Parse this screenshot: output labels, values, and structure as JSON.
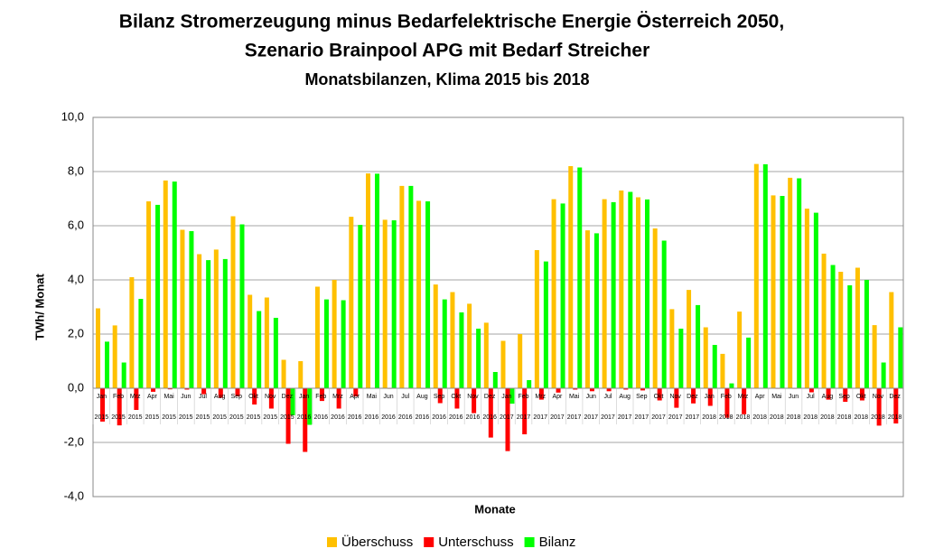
{
  "chart_data": {
    "type": "bar",
    "title": [
      "Bilanz Stromerzeugung minus Bedarfelektrische Energie Österreich 2050,",
      "Szenario Brainpool APG mit Bedarf Streicher"
    ],
    "subtitle": "Monatsbilanzen, Klima 2015 bis 2018",
    "y_label": "TWh/ Monat",
    "x_label": "Monate",
    "categories": [
      "Jan",
      "Feb",
      "Mrz",
      "Apr",
      "Mai",
      "Jun",
      "Jul",
      "Aug",
      "Sep",
      "Okt",
      "Nov",
      "Dez",
      "Jan",
      "Feb",
      "Mrz",
      "Apr",
      "Mai",
      "Jun",
      "Jul",
      "Aug",
      "Sep",
      "Okt",
      "Nov",
      "Dez",
      "Jan",
      "Feb",
      "Mrz",
      "Apr",
      "Mai",
      "Jun",
      "Jul",
      "Aug",
      "Sep",
      "Okt",
      "Nov",
      "Dez",
      "Jan",
      "Feb",
      "Mrz",
      "Apr",
      "Mai",
      "Jun",
      "Jul",
      "Aug",
      "Sep",
      "Okt",
      "Nov",
      "Dez"
    ],
    "years": [
      "2015",
      "2015",
      "2015",
      "2015",
      "2015",
      "2015",
      "2015",
      "2015",
      "2015",
      "2015",
      "2015",
      "2015",
      "2016",
      "2016",
      "2016",
      "2016",
      "2016",
      "2016",
      "2016",
      "2016",
      "2016",
      "2016",
      "2016",
      "2016",
      "2017",
      "2017",
      "2017",
      "2017",
      "2017",
      "2017",
      "2017",
      "2017",
      "2017",
      "2017",
      "2017",
      "2017",
      "2018",
      "2018",
      "2018",
      "2018",
      "2018",
      "2018",
      "2018",
      "2018",
      "2018",
      "2018",
      "2018",
      "2018"
    ],
    "series": [
      {
        "name": "Überschuss",
        "color": "#ffc000",
        "values": [
          2.95,
          2.32,
          4.1,
          6.9,
          7.67,
          5.85,
          4.95,
          5.12,
          6.35,
          3.45,
          3.35,
          1.05,
          1.0,
          3.75,
          4.0,
          6.33,
          7.93,
          6.22,
          7.47,
          6.92,
          3.83,
          3.55,
          3.12,
          2.42,
          1.75,
          2.0,
          5.1,
          6.98,
          8.2,
          5.83,
          6.98,
          7.3,
          7.05,
          5.9,
          2.92,
          3.63,
          2.25,
          1.27,
          2.83,
          8.28,
          7.12,
          7.77,
          6.63,
          4.97,
          4.3,
          4.45,
          2.33,
          3.55
        ]
      },
      {
        "name": "Unterschuss",
        "color": "#ff0000",
        "values": [
          -1.23,
          -1.37,
          -0.8,
          -0.13,
          -0.04,
          -0.05,
          -0.22,
          -0.35,
          -0.3,
          -0.6,
          -0.75,
          -2.05,
          -2.35,
          -0.47,
          -0.75,
          -0.3,
          -0.01,
          -0.02,
          0,
          -0.02,
          -0.55,
          -0.75,
          -0.92,
          -1.82,
          -2.32,
          -1.7,
          -0.42,
          -0.16,
          -0.05,
          -0.11,
          -0.11,
          -0.05,
          -0.08,
          -0.45,
          -0.72,
          -0.56,
          -0.65,
          -1.09,
          -0.96,
          -0.01,
          -0.02,
          -0.02,
          -0.15,
          -0.42,
          -0.5,
          -0.45,
          -1.38,
          -1.3
        ]
      },
      {
        "name": "Bilanz",
        "color": "#00ff00",
        "values": [
          1.72,
          0.95,
          3.3,
          6.77,
          7.63,
          5.8,
          4.73,
          4.77,
          6.05,
          2.85,
          2.6,
          -1.0,
          -1.35,
          3.28,
          3.25,
          6.03,
          7.92,
          6.2,
          7.47,
          6.9,
          3.28,
          2.8,
          2.2,
          0.6,
          -0.57,
          0.3,
          4.68,
          6.82,
          8.15,
          5.72,
          6.87,
          7.25,
          6.97,
          5.45,
          2.2,
          3.07,
          1.6,
          0.18,
          1.87,
          8.27,
          7.1,
          7.75,
          6.48,
          4.55,
          3.8,
          4.0,
          0.95,
          2.25
        ]
      }
    ],
    "ylim": [
      -4,
      10
    ],
    "yticks": [
      {
        "value": -4,
        "label": "-4,0"
      },
      {
        "value": -2,
        "label": "-2,0"
      },
      {
        "value": 0,
        "label": "0,0"
      },
      {
        "value": 2,
        "label": "2,0"
      },
      {
        "value": 4,
        "label": "4,0"
      },
      {
        "value": 6,
        "label": "6,0"
      },
      {
        "value": 8,
        "label": "8,0"
      },
      {
        "value": 10,
        "label": "10,0"
      }
    ],
    "grid": true,
    "legend": "bottom"
  }
}
